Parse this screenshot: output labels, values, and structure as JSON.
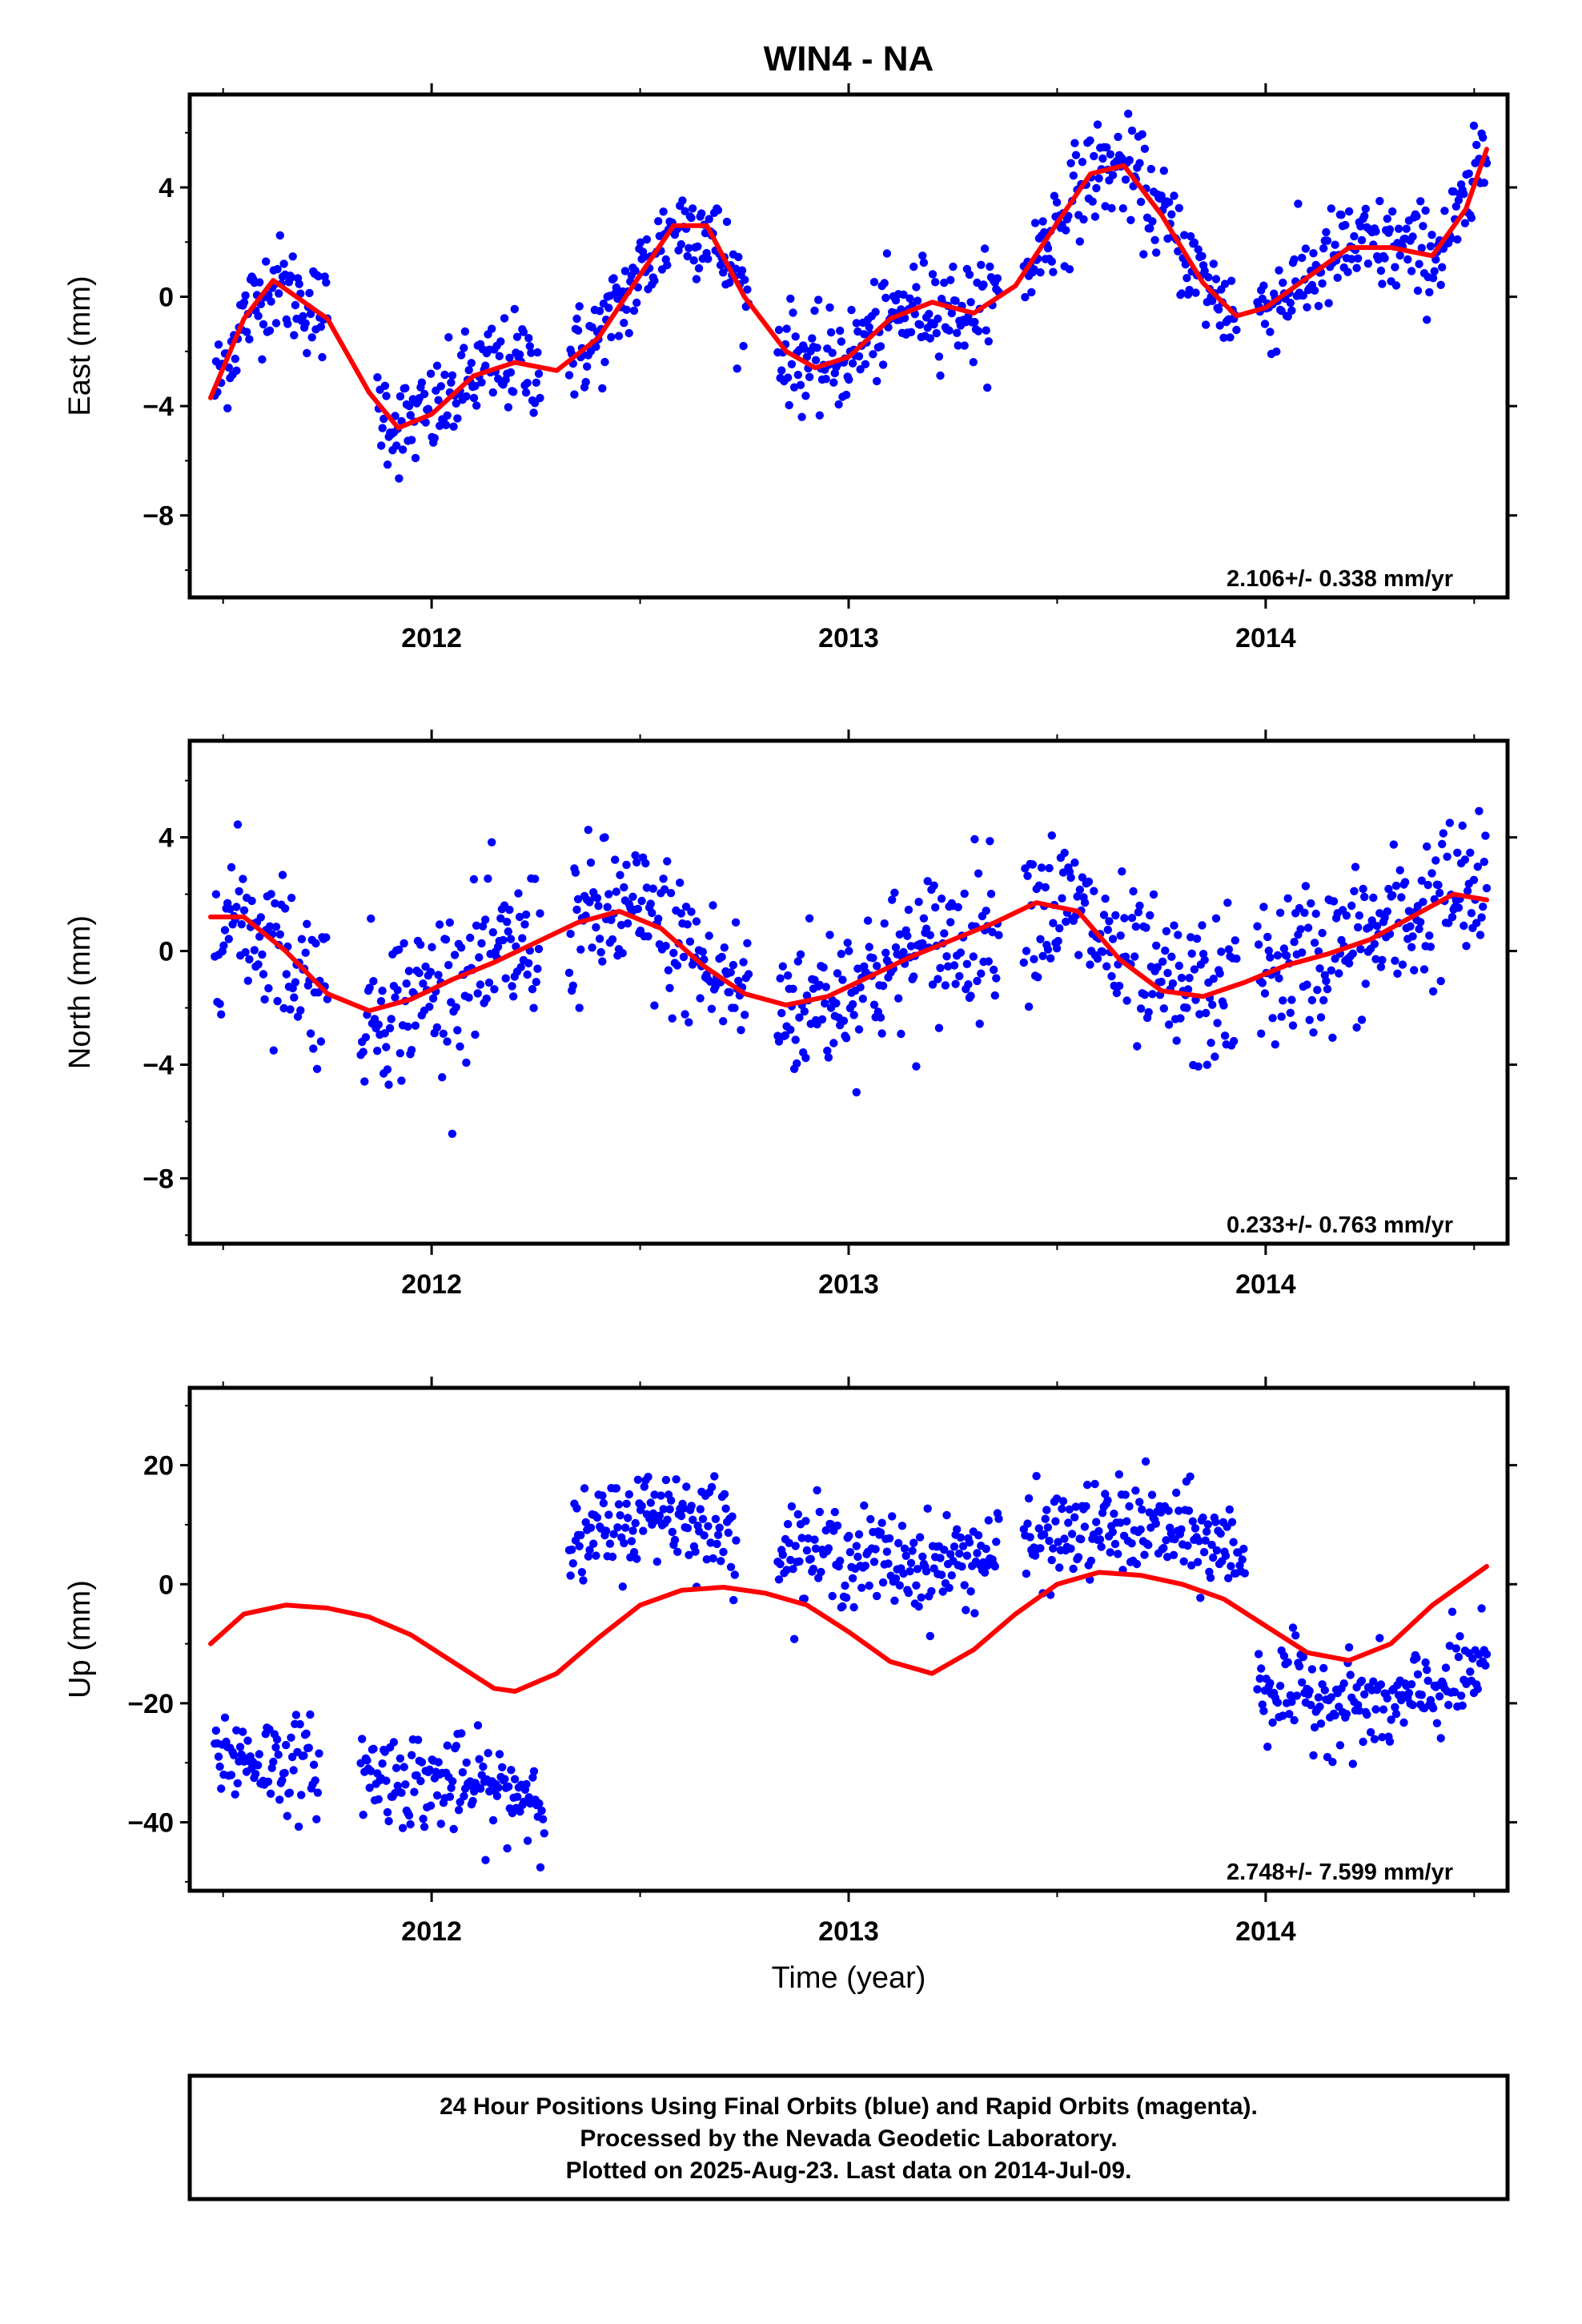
{
  "title": "WIN4 - NA",
  "colors": {
    "points": "#0000ff",
    "model": "#ff0000",
    "frame": "#000000"
  },
  "chart_data": [
    {
      "type": "scatter",
      "ylabel": "East (mm)",
      "xlim": [
        2011.42,
        2014.58
      ],
      "ylim": [
        -11,
        7.4
      ],
      "yticks": [
        -8,
        -4,
        0,
        4
      ],
      "ytick_labels": [
        "−8",
        "−4",
        "0",
        "4"
      ],
      "xticks": [
        2012,
        2013,
        2014
      ],
      "xtick_labels": [
        "2012",
        "2013",
        "2014"
      ],
      "rate_text": "2.106+/- 0.338 mm/yr",
      "series": [
        {
          "kind": "scatter",
          "color": "#0000ff",
          "segments": [
            [
              2011.48,
              2011.75
            ],
            [
              2011.87,
              2012.26
            ],
            [
              2012.33,
              2012.76
            ],
            [
              2012.83,
              2013.36
            ],
            [
              2013.42,
              2013.93
            ],
            [
              2013.98,
              2014.53
            ]
          ],
          "noise_sd": 0.9,
          "points_per_year": 330
        },
        {
          "kind": "line",
          "color": "#ff0000",
          "x": [
            2011.47,
            2011.55,
            2011.62,
            2011.75,
            2011.85,
            2011.92,
            2012.0,
            2012.1,
            2012.2,
            2012.3,
            2012.4,
            2012.5,
            2012.58,
            2012.66,
            2012.75,
            2012.85,
            2012.92,
            2013.0,
            2013.1,
            2013.2,
            2013.3,
            2013.4,
            2013.5,
            2013.58,
            2013.66,
            2013.75,
            2013.85,
            2013.93,
            2014.0,
            2014.1,
            2014.2,
            2014.3,
            2014.4,
            2014.48,
            2014.53
          ],
          "y": [
            -3.7,
            -0.8,
            0.6,
            -0.8,
            -3.5,
            -4.8,
            -4.3,
            -2.9,
            -2.4,
            -2.7,
            -1.5,
            0.8,
            2.6,
            2.6,
            0.0,
            -2.0,
            -2.6,
            -2.2,
            -0.8,
            -0.2,
            -0.6,
            0.4,
            2.7,
            4.5,
            4.8,
            3.0,
            0.5,
            -0.7,
            -0.4,
            0.7,
            1.8,
            1.8,
            1.5,
            3.2,
            5.4
          ]
        }
      ]
    },
    {
      "type": "scatter",
      "ylabel": "North (mm)",
      "xlim": [
        2011.42,
        2014.58
      ],
      "ylim": [
        -10.3,
        7.4
      ],
      "yticks": [
        -8,
        -4,
        0,
        4
      ],
      "ytick_labels": [
        "−8",
        "−4",
        "0",
        "4"
      ],
      "xticks": [
        2012,
        2013,
        2014
      ],
      "xtick_labels": [
        "2012",
        "2013",
        "2014"
      ],
      "rate_text": "0.233+/- 0.763 mm/yr",
      "series": [
        {
          "kind": "scatter",
          "color": "#0000ff",
          "segments": [
            [
              2011.48,
              2011.75
            ],
            [
              2011.83,
              2012.26
            ],
            [
              2012.33,
              2012.76
            ],
            [
              2012.83,
              2013.36
            ],
            [
              2013.42,
              2013.93
            ],
            [
              2013.98,
              2014.53
            ]
          ],
          "noise_sd": 1.35,
          "points_per_year": 330
        },
        {
          "kind": "line",
          "color": "#ff0000",
          "x": [
            2011.47,
            2011.55,
            2011.65,
            2011.75,
            2011.85,
            2011.95,
            2012.05,
            2012.15,
            2012.25,
            2012.35,
            2012.45,
            2012.55,
            2012.65,
            2012.75,
            2012.85,
            2012.95,
            2013.05,
            2013.15,
            2013.25,
            2013.35,
            2013.45,
            2013.55,
            2013.65,
            2013.75,
            2013.85,
            2013.95,
            2014.05,
            2014.15,
            2014.25,
            2014.35,
            2014.45,
            2014.53
          ],
          "y": [
            1.2,
            1.2,
            0.0,
            -1.5,
            -2.1,
            -1.7,
            -1.0,
            -0.4,
            0.3,
            1.0,
            1.4,
            0.8,
            -0.5,
            -1.5,
            -1.9,
            -1.6,
            -0.9,
            -0.2,
            0.4,
            1.0,
            1.7,
            1.4,
            -0.3,
            -1.4,
            -1.6,
            -1.1,
            -0.5,
            -0.1,
            0.4,
            1.2,
            2.0,
            1.8
          ]
        }
      ]
    },
    {
      "type": "scatter",
      "ylabel": "Up (mm)",
      "xlabel": "Time (year)",
      "xlim": [
        2011.42,
        2014.58
      ],
      "ylim": [
        -51.5,
        33
      ],
      "yticks": [
        -40,
        -20,
        0,
        20
      ],
      "ytick_labels": [
        "−40",
        "−20",
        "0",
        "20"
      ],
      "xticks": [
        2012,
        2013,
        2014
      ],
      "xtick_labels": [
        "2012",
        "2013",
        "2014"
      ],
      "rate_text": "2.748+/- 7.599 mm/yr",
      "series": [
        {
          "kind": "scatter",
          "color": "#0000ff",
          "segments": [
            [
              2011.48,
              2011.73
            ],
            [
              2011.83,
              2012.27
            ],
            [
              2012.33,
              2012.73
            ],
            [
              2012.83,
              2013.36
            ],
            [
              2013.42,
              2013.95
            ],
            [
              2013.98,
              2014.53
            ]
          ],
          "levels": [
            [
              2011.0,
              -24
            ],
            [
              2012.2,
              -35
            ],
            [
              2012.3,
              5
            ],
            [
              2012.55,
              13
            ],
            [
              2012.75,
              8
            ],
            [
              2012.85,
              6
            ],
            [
              2013.2,
              3
            ],
            [
              2013.5,
              8
            ],
            [
              2013.7,
              10
            ],
            [
              2013.96,
              5
            ],
            [
              2013.97,
              -17
            ],
            [
              2014.3,
              -21
            ],
            [
              2014.53,
              -14
            ]
          ],
          "noise_sd": 4.0,
          "points_per_year": 330
        },
        {
          "kind": "line",
          "color": "#ff0000",
          "x": [
            2011.47,
            2011.55,
            2011.65,
            2011.75,
            2011.85,
            2011.95,
            2012.05,
            2012.15,
            2012.2,
            2012.3,
            2012.4,
            2012.5,
            2012.6,
            2012.7,
            2012.8,
            2012.9,
            2013.0,
            2013.1,
            2013.2,
            2013.3,
            2013.4,
            2013.5,
            2013.6,
            2013.7,
            2013.8,
            2013.9,
            2014.0,
            2014.1,
            2014.2,
            2014.3,
            2014.4,
            2014.53
          ],
          "y": [
            -10,
            -5,
            -3.5,
            -4,
            -5.5,
            -8.5,
            -13,
            -17.5,
            -18,
            -15,
            -9,
            -3.5,
            -1,
            -0.5,
            -1.5,
            -3.5,
            -8,
            -13,
            -15,
            -11,
            -5,
            0,
            2,
            1.5,
            0,
            -2.5,
            -7,
            -11.5,
            -12.8,
            -10,
            -3.5,
            3
          ]
        }
      ]
    }
  ],
  "footer": {
    "line1": "24 Hour Positions Using Final Orbits (blue) and Rapid Orbits (magenta).",
    "line2": "Processed by the Nevada Geodetic Laboratory.",
    "line3": "Plotted on 2025-Aug-23. Last data on 2014-Jul-09."
  }
}
